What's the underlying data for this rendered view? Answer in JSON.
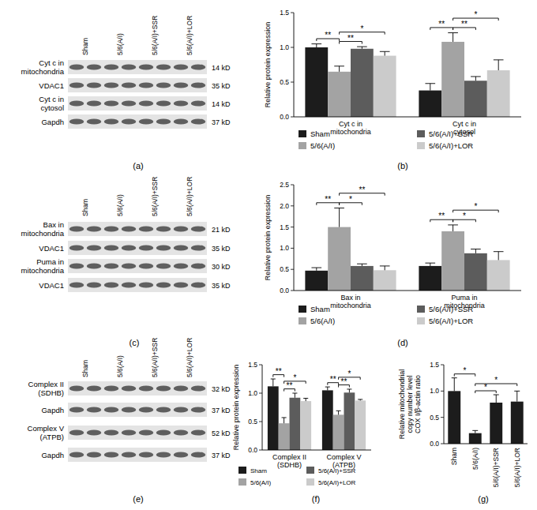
{
  "chart_data": [
    {
      "type": "bar",
      "title": "(b)",
      "y_label": "Relative protein expression",
      "categories": [
        "Cyt c in\nmitochondria",
        "Cyt c in\ncytosol"
      ],
      "series": [
        {
          "name": "Sham",
          "color": "#1c1c1c",
          "values": [
            1.0,
            0.38
          ],
          "errors": [
            0.05,
            0.1
          ]
        },
        {
          "name": "5/6(A/I)",
          "color": "#a3a3a3",
          "values": [
            0.65,
            1.08
          ],
          "errors": [
            0.08,
            0.13
          ]
        },
        {
          "name": "5/6(A/I)+SSR",
          "color": "#5c5c5c",
          "values": [
            0.98,
            0.52
          ],
          "errors": [
            0.03,
            0.06
          ]
        },
        {
          "name": "5/6(A/I)+LOR",
          "color": "#cbcbcb",
          "values": [
            0.88,
            0.67
          ],
          "errors": [
            0.06,
            0.15
          ]
        }
      ],
      "ylim": [
        0,
        1.5
      ],
      "yticks": [
        {
          "value": 0,
          "label": "0.0"
        },
        {
          "value": 0.5,
          "label": "0.5"
        },
        {
          "value": 1,
          "label": "1.0"
        },
        {
          "value": 1.5,
          "label": "1.5"
        }
      ],
      "grid": false,
      "legend": "bottom",
      "significance": [
        {
          "category": 0,
          "pair": [
            0,
            1
          ],
          "label": "**"
        },
        {
          "category": 0,
          "pair": [
            1,
            2
          ],
          "label": "**"
        },
        {
          "category": 0,
          "pair": [
            1,
            3
          ],
          "label": "*"
        },
        {
          "category": 1,
          "pair": [
            0,
            1
          ],
          "label": "**"
        },
        {
          "category": 1,
          "pair": [
            1,
            2
          ],
          "label": "**"
        },
        {
          "category": 1,
          "pair": [
            1,
            3
          ],
          "label": "*"
        }
      ]
    },
    {
      "type": "bar",
      "title": "(d)",
      "y_label": "Relative protein expression",
      "categories": [
        "Bax in\nmitochondria",
        "Puma in\nmitochondria"
      ],
      "series": [
        {
          "name": "Sham",
          "color": "#1c1c1c",
          "values": [
            0.47,
            0.58
          ],
          "errors": [
            0.07,
            0.07
          ]
        },
        {
          "name": "5/6(A/I)",
          "color": "#a3a3a3",
          "values": [
            1.5,
            1.4
          ],
          "errors": [
            0.45,
            0.15
          ]
        },
        {
          "name": "5/6(A/I)+SSR",
          "color": "#5c5c5c",
          "values": [
            0.58,
            0.88
          ],
          "errors": [
            0.05,
            0.1
          ]
        },
        {
          "name": "5/6(A/I)+LOR",
          "color": "#cbcbcb",
          "values": [
            0.48,
            0.72
          ],
          "errors": [
            0.1,
            0.2
          ]
        }
      ],
      "ylim": [
        0,
        2.5
      ],
      "yticks": [
        {
          "value": 0,
          "label": "0.0"
        },
        {
          "value": 0.5,
          "label": "0.5"
        },
        {
          "value": 1,
          "label": "1.0"
        },
        {
          "value": 1.5,
          "label": "1.5"
        },
        {
          "value": 2,
          "label": "2.0"
        },
        {
          "value": 2.5,
          "label": "2.5"
        }
      ],
      "grid": false,
      "legend": "bottom",
      "significance": [
        {
          "category": 0,
          "pair": [
            0,
            1
          ],
          "label": "**"
        },
        {
          "category": 0,
          "pair": [
            1,
            2
          ],
          "label": "*"
        },
        {
          "category": 0,
          "pair": [
            1,
            3
          ],
          "label": "**"
        },
        {
          "category": 1,
          "pair": [
            0,
            1
          ],
          "label": "**"
        },
        {
          "category": 1,
          "pair": [
            1,
            2
          ],
          "label": "*"
        },
        {
          "category": 1,
          "pair": [
            1,
            3
          ],
          "label": "*"
        }
      ]
    },
    {
      "type": "bar",
      "title": "(f)",
      "y_label": "Relative protein expression",
      "categories": [
        "Complex II\n(SDHB)",
        "Complex V\n(ATPB)"
      ],
      "series": [
        {
          "name": "Sham",
          "color": "#1c1c1c",
          "values": [
            1.12,
            1.05
          ],
          "errors": [
            0.13,
            0.06
          ]
        },
        {
          "name": "5/6(A/I)",
          "color": "#a3a3a3",
          "values": [
            0.47,
            0.62
          ],
          "errors": [
            0.1,
            0.07
          ]
        },
        {
          "name": "5/6(A/I)+SSR",
          "color": "#5c5c5c",
          "values": [
            0.92,
            1.01
          ],
          "errors": [
            0.08,
            0.06
          ]
        },
        {
          "name": "5/6(A/I)+LOR",
          "color": "#cbcbcb",
          "values": [
            0.86,
            0.87
          ],
          "errors": [
            0.05,
            0.02
          ]
        }
      ],
      "ylim": [
        0,
        1.5
      ],
      "yticks": [
        {
          "value": 0,
          "label": "0.0"
        },
        {
          "value": 0.5,
          "label": "0.5"
        },
        {
          "value": 1,
          "label": "1.0"
        },
        {
          "value": 1.5,
          "label": "1.5"
        }
      ],
      "grid": false,
      "legend": "bottom",
      "significance": [
        {
          "category": 0,
          "pair": [
            0,
            1
          ],
          "label": "**"
        },
        {
          "category": 0,
          "pair": [
            1,
            2
          ],
          "label": "**"
        },
        {
          "category": 0,
          "pair": [
            1,
            3
          ],
          "label": "*"
        },
        {
          "category": 1,
          "pair": [
            0,
            1
          ],
          "label": "**"
        },
        {
          "category": 1,
          "pair": [
            1,
            2
          ],
          "label": "**"
        },
        {
          "category": 1,
          "pair": [
            1,
            3
          ],
          "label": "*"
        }
      ]
    },
    {
      "type": "bar",
      "title": "(g)",
      "y_label": "Relative mitochondrial\ncopy number level\nCOX I/β-actin ratio",
      "categories": [
        "Sham",
        "5/6(A/I)",
        "5/6(A/I)+SSR",
        "5/6(A/I)+LOR"
      ],
      "values": [
        1.0,
        0.2,
        0.78,
        0.8
      ],
      "errors": [
        0.25,
        0.05,
        0.15,
        0.2
      ],
      "color": "#1c1c1c",
      "ylim": [
        0,
        1.5
      ],
      "yticks": [
        {
          "value": 0,
          "label": "0.0"
        },
        {
          "value": 0.5,
          "label": "0.5"
        },
        {
          "value": 1,
          "label": "1.0"
        },
        {
          "value": 1.5,
          "label": "1.5"
        }
      ],
      "grid": false,
      "significance": [
        {
          "pair": [
            0,
            1
          ],
          "label": "*"
        },
        {
          "pair": [
            1,
            2
          ],
          "label": "*"
        },
        {
          "pair": [
            1,
            3
          ],
          "label": "*"
        }
      ]
    }
  ],
  "blots": [
    {
      "panel": "(a)",
      "lanes": [
        "Sham",
        "5/6(A/I)",
        "5/6(A/I)+SSR",
        "5/6(A/I)+LOR"
      ],
      "rows": [
        {
          "label": "Cyt c in\nmitochondria",
          "size": "14 kD"
        },
        {
          "label": "VDAC1",
          "size": "35 kD"
        },
        {
          "label": "Cyt c in\ncytosol",
          "size": "14 kD"
        },
        {
          "label": "Gapdh",
          "size": "37 kD"
        }
      ]
    },
    {
      "panel": "(c)",
      "lanes": [
        "Sham",
        "5/6(A/I)",
        "5/6(A/I)+SSR",
        "5/6(A/I)+LOR"
      ],
      "rows": [
        {
          "label": "Bax in\nmitochondria",
          "size": "21 kD"
        },
        {
          "label": "VDAC1",
          "size": "35 kD"
        },
        {
          "label": "Puma in\nmitochondria",
          "size": "30 kD"
        },
        {
          "label": "VDAC1",
          "size": "35 kD"
        }
      ]
    },
    {
      "panel": "(e)",
      "lanes": [
        "Sham",
        "5/6(A/I)",
        "5/6(A/I)+SSR",
        "5/6(A/I)+LOR"
      ],
      "rows": [
        {
          "label": "Complex II\n(SDHB)",
          "size": "32 kD"
        },
        {
          "label": "Gapdh",
          "size": "37 kD"
        },
        {
          "label": "Complex V\n(ATPB)",
          "size": "52 kD"
        },
        {
          "label": "Gapdh",
          "size": "37 kD"
        }
      ]
    }
  ]
}
